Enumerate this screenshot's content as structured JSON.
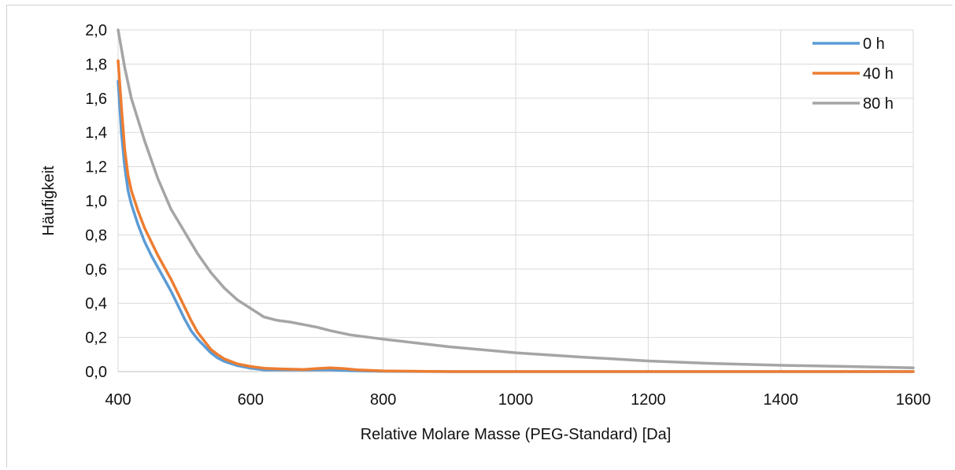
{
  "chart_data": {
    "type": "line",
    "title": "",
    "xlabel": "Relative Molare Masse (PEG-Standard) [Da]",
    "ylabel": "Häufigkeit",
    "xlim": [
      400,
      1600
    ],
    "ylim": [
      0,
      2.0
    ],
    "x_ticks": [
      400,
      600,
      800,
      1000,
      1200,
      1400,
      1600
    ],
    "x_tick_labels": [
      "400",
      "600",
      "800",
      "1000",
      "1200",
      "1400",
      "1600"
    ],
    "y_ticks": [
      0,
      0.2,
      0.4,
      0.6,
      0.8,
      1.0,
      1.2,
      1.4,
      1.6,
      1.8,
      2.0
    ],
    "y_tick_labels": [
      "0,0",
      "0,2",
      "0,4",
      "0,6",
      "0,8",
      "1,0",
      "1,2",
      "1,4",
      "1,6",
      "1,8",
      "2,0"
    ],
    "grid": true,
    "legend_position": "top-right",
    "series": [
      {
        "name": "0 h",
        "color": "#5B9BD5",
        "points": [
          [
            400,
            1.7
          ],
          [
            405,
            1.4
          ],
          [
            410,
            1.2
          ],
          [
            415,
            1.06
          ],
          [
            420,
            0.98
          ],
          [
            430,
            0.86
          ],
          [
            440,
            0.76
          ],
          [
            450,
            0.68
          ],
          [
            460,
            0.61
          ],
          [
            470,
            0.54
          ],
          [
            480,
            0.47
          ],
          [
            490,
            0.39
          ],
          [
            500,
            0.31
          ],
          [
            510,
            0.24
          ],
          [
            520,
            0.19
          ],
          [
            530,
            0.15
          ],
          [
            540,
            0.11
          ],
          [
            550,
            0.08
          ],
          [
            560,
            0.06
          ],
          [
            580,
            0.035
          ],
          [
            600,
            0.02
          ],
          [
            620,
            0.01
          ],
          [
            650,
            0.01
          ],
          [
            700,
            0.01
          ],
          [
            720,
            0.01
          ],
          [
            750,
            0.005
          ],
          [
            800,
            0.002
          ],
          [
            900,
            0.0
          ],
          [
            1000,
            0.0
          ],
          [
            1200,
            0.0
          ],
          [
            1400,
            0.0
          ],
          [
            1600,
            0.0
          ]
        ]
      },
      {
        "name": "40 h",
        "color": "#ED7D31",
        "points": [
          [
            400,
            1.82
          ],
          [
            405,
            1.55
          ],
          [
            410,
            1.3
          ],
          [
            415,
            1.15
          ],
          [
            420,
            1.06
          ],
          [
            430,
            0.94
          ],
          [
            440,
            0.84
          ],
          [
            450,
            0.76
          ],
          [
            460,
            0.68
          ],
          [
            470,
            0.61
          ],
          [
            480,
            0.54
          ],
          [
            490,
            0.46
          ],
          [
            500,
            0.38
          ],
          [
            510,
            0.3
          ],
          [
            520,
            0.23
          ],
          [
            530,
            0.18
          ],
          [
            540,
            0.13
          ],
          [
            550,
            0.1
          ],
          [
            560,
            0.075
          ],
          [
            580,
            0.045
          ],
          [
            600,
            0.03
          ],
          [
            620,
            0.02
          ],
          [
            650,
            0.015
          ],
          [
            680,
            0.012
          ],
          [
            700,
            0.018
          ],
          [
            720,
            0.022
          ],
          [
            740,
            0.018
          ],
          [
            760,
            0.01
          ],
          [
            800,
            0.004
          ],
          [
            900,
            0.0
          ],
          [
            1000,
            0.0
          ],
          [
            1200,
            0.0
          ],
          [
            1400,
            0.0
          ],
          [
            1600,
            0.0
          ]
        ]
      },
      {
        "name": "80 h",
        "color": "#A5A5A5",
        "points": [
          [
            400,
            2.0
          ],
          [
            410,
            1.78
          ],
          [
            420,
            1.6
          ],
          [
            440,
            1.35
          ],
          [
            460,
            1.13
          ],
          [
            480,
            0.95
          ],
          [
            500,
            0.82
          ],
          [
            520,
            0.69
          ],
          [
            540,
            0.58
          ],
          [
            560,
            0.49
          ],
          [
            580,
            0.42
          ],
          [
            600,
            0.37
          ],
          [
            620,
            0.32
          ],
          [
            640,
            0.3
          ],
          [
            660,
            0.29
          ],
          [
            680,
            0.275
          ],
          [
            700,
            0.26
          ],
          [
            720,
            0.24
          ],
          [
            750,
            0.215
          ],
          [
            800,
            0.19
          ],
          [
            900,
            0.145
          ],
          [
            1000,
            0.11
          ],
          [
            1100,
            0.085
          ],
          [
            1200,
            0.062
          ],
          [
            1300,
            0.047
          ],
          [
            1400,
            0.037
          ],
          [
            1500,
            0.03
          ],
          [
            1600,
            0.022
          ]
        ]
      }
    ]
  }
}
